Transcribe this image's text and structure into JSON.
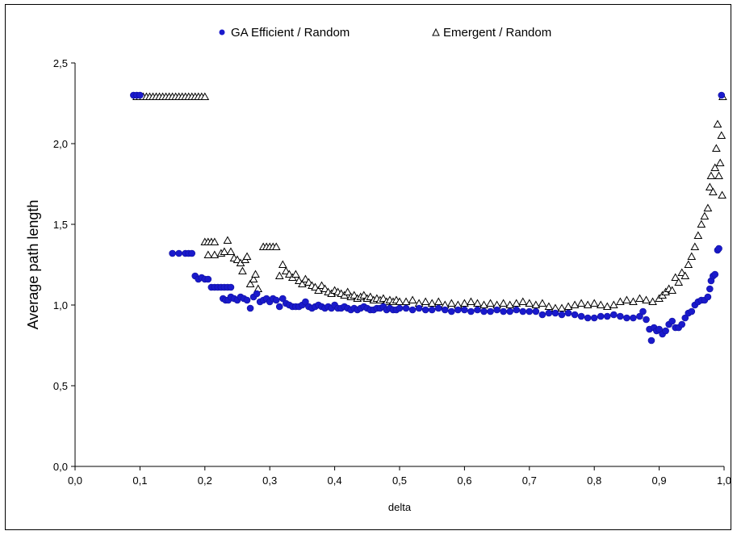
{
  "chart_data": {
    "type": "scatter",
    "title": "",
    "xlabel": "delta",
    "ylabel": "Average path length",
    "xlim": [
      0,
      1
    ],
    "ylim": [
      0,
      2.5
    ],
    "x_ticks": [
      "0,0",
      "0,1",
      "0,2",
      "0,3",
      "0,4",
      "0,5",
      "0,6",
      "0,7",
      "0,8",
      "0,9",
      "1,0"
    ],
    "y_ticks": [
      "0,0",
      "0,5",
      "1,0",
      "1,5",
      "2,0",
      "2,5"
    ],
    "grid": false,
    "legend_position": "top",
    "series": [
      {
        "name": "GA Efficient / Random",
        "marker": "circle",
        "color": "#1a1acc",
        "points": [
          [
            0.09,
            2.3
          ],
          [
            0.095,
            2.3
          ],
          [
            0.1,
            2.3
          ],
          [
            0.15,
            1.32
          ],
          [
            0.16,
            1.32
          ],
          [
            0.17,
            1.32
          ],
          [
            0.175,
            1.32
          ],
          [
            0.18,
            1.32
          ],
          [
            0.185,
            1.18
          ],
          [
            0.19,
            1.16
          ],
          [
            0.195,
            1.17
          ],
          [
            0.2,
            1.16
          ],
          [
            0.205,
            1.16
          ],
          [
            0.21,
            1.11
          ],
          [
            0.215,
            1.11
          ],
          [
            0.22,
            1.11
          ],
          [
            0.225,
            1.11
          ],
          [
            0.23,
            1.11
          ],
          [
            0.235,
            1.11
          ],
          [
            0.24,
            1.11
          ],
          [
            0.228,
            1.04
          ],
          [
            0.232,
            1.03
          ],
          [
            0.236,
            1.03
          ],
          [
            0.24,
            1.05
          ],
          [
            0.245,
            1.04
          ],
          [
            0.25,
            1.03
          ],
          [
            0.255,
            1.05
          ],
          [
            0.26,
            1.04
          ],
          [
            0.265,
            1.03
          ],
          [
            0.27,
            0.98
          ],
          [
            0.275,
            1.05
          ],
          [
            0.28,
            1.07
          ],
          [
            0.285,
            1.02
          ],
          [
            0.29,
            1.03
          ],
          [
            0.295,
            1.04
          ],
          [
            0.3,
            1.02
          ],
          [
            0.305,
            1.04
          ],
          [
            0.31,
            1.03
          ],
          [
            0.315,
            0.99
          ],
          [
            0.32,
            1.04
          ],
          [
            0.325,
            1.01
          ],
          [
            0.33,
            1.0
          ],
          [
            0.335,
            0.99
          ],
          [
            0.34,
            0.99
          ],
          [
            0.345,
            0.99
          ],
          [
            0.35,
            1.0
          ],
          [
            0.355,
            1.02
          ],
          [
            0.36,
            0.99
          ],
          [
            0.365,
            0.98
          ],
          [
            0.37,
            0.99
          ],
          [
            0.375,
            1.0
          ],
          [
            0.38,
            0.99
          ],
          [
            0.385,
            0.98
          ],
          [
            0.39,
            0.99
          ],
          [
            0.395,
            0.98
          ],
          [
            0.4,
            1.0
          ],
          [
            0.405,
            0.98
          ],
          [
            0.41,
            0.98
          ],
          [
            0.415,
            0.99
          ],
          [
            0.42,
            0.98
          ],
          [
            0.425,
            0.97
          ],
          [
            0.43,
            0.98
          ],
          [
            0.435,
            0.97
          ],
          [
            0.44,
            0.98
          ],
          [
            0.445,
            0.99
          ],
          [
            0.45,
            0.98
          ],
          [
            0.455,
            0.97
          ],
          [
            0.46,
            0.97
          ],
          [
            0.465,
            0.98
          ],
          [
            0.47,
            0.98
          ],
          [
            0.475,
            0.99
          ],
          [
            0.48,
            0.97
          ],
          [
            0.485,
            0.98
          ],
          [
            0.49,
            0.97
          ],
          [
            0.495,
            0.97
          ],
          [
            0.5,
            0.98
          ],
          [
            0.51,
            0.98
          ],
          [
            0.52,
            0.97
          ],
          [
            0.53,
            0.98
          ],
          [
            0.54,
            0.97
          ],
          [
            0.55,
            0.97
          ],
          [
            0.56,
            0.98
          ],
          [
            0.57,
            0.97
          ],
          [
            0.58,
            0.96
          ],
          [
            0.59,
            0.97
          ],
          [
            0.6,
            0.97
          ],
          [
            0.61,
            0.96
          ],
          [
            0.62,
            0.97
          ],
          [
            0.63,
            0.96
          ],
          [
            0.64,
            0.96
          ],
          [
            0.65,
            0.97
          ],
          [
            0.66,
            0.96
          ],
          [
            0.67,
            0.96
          ],
          [
            0.68,
            0.97
          ],
          [
            0.69,
            0.96
          ],
          [
            0.7,
            0.96
          ],
          [
            0.71,
            0.96
          ],
          [
            0.72,
            0.94
          ],
          [
            0.73,
            0.95
          ],
          [
            0.74,
            0.95
          ],
          [
            0.75,
            0.94
          ],
          [
            0.76,
            0.95
          ],
          [
            0.77,
            0.94
          ],
          [
            0.78,
            0.93
          ],
          [
            0.79,
            0.92
          ],
          [
            0.8,
            0.92
          ],
          [
            0.81,
            0.93
          ],
          [
            0.82,
            0.93
          ],
          [
            0.83,
            0.94
          ],
          [
            0.84,
            0.93
          ],
          [
            0.85,
            0.92
          ],
          [
            0.86,
            0.92
          ],
          [
            0.87,
            0.93
          ],
          [
            0.875,
            0.96
          ],
          [
            0.88,
            0.91
          ],
          [
            0.885,
            0.85
          ],
          [
            0.888,
            0.78
          ],
          [
            0.892,
            0.86
          ],
          [
            0.896,
            0.84
          ],
          [
            0.9,
            0.85
          ],
          [
            0.905,
            0.82
          ],
          [
            0.91,
            0.84
          ],
          [
            0.915,
            0.88
          ],
          [
            0.92,
            0.9
          ],
          [
            0.925,
            0.86
          ],
          [
            0.93,
            0.86
          ],
          [
            0.935,
            0.88
          ],
          [
            0.94,
            0.92
          ],
          [
            0.945,
            0.95
          ],
          [
            0.95,
            0.96
          ],
          [
            0.955,
            1.0
          ],
          [
            0.96,
            1.02
          ],
          [
            0.965,
            1.03
          ],
          [
            0.97,
            1.03
          ],
          [
            0.975,
            1.05
          ],
          [
            0.978,
            1.1
          ],
          [
            0.98,
            1.15
          ],
          [
            0.983,
            1.18
          ],
          [
            0.986,
            1.19
          ],
          [
            0.99,
            1.34
          ],
          [
            0.992,
            1.35
          ],
          [
            0.996,
            2.3
          ]
        ]
      },
      {
        "name": "Emergent / Random",
        "marker": "triangle",
        "color": "#000000",
        "points": [
          [
            0.095,
            2.29
          ],
          [
            0.1,
            2.29
          ],
          [
            0.105,
            2.29
          ],
          [
            0.11,
            2.29
          ],
          [
            0.115,
            2.29
          ],
          [
            0.12,
            2.29
          ],
          [
            0.125,
            2.29
          ],
          [
            0.13,
            2.29
          ],
          [
            0.135,
            2.29
          ],
          [
            0.14,
            2.29
          ],
          [
            0.145,
            2.29
          ],
          [
            0.15,
            2.29
          ],
          [
            0.155,
            2.29
          ],
          [
            0.16,
            2.29
          ],
          [
            0.165,
            2.29
          ],
          [
            0.17,
            2.29
          ],
          [
            0.175,
            2.29
          ],
          [
            0.18,
            2.29
          ],
          [
            0.185,
            2.29
          ],
          [
            0.19,
            2.29
          ],
          [
            0.195,
            2.29
          ],
          [
            0.2,
            2.29
          ],
          [
            0.2,
            1.39
          ],
          [
            0.205,
            1.39
          ],
          [
            0.21,
            1.39
          ],
          [
            0.215,
            1.39
          ],
          [
            0.205,
            1.31
          ],
          [
            0.215,
            1.31
          ],
          [
            0.225,
            1.32
          ],
          [
            0.23,
            1.33
          ],
          [
            0.235,
            1.4
          ],
          [
            0.24,
            1.33
          ],
          [
            0.245,
            1.29
          ],
          [
            0.25,
            1.28
          ],
          [
            0.255,
            1.26
          ],
          [
            0.258,
            1.21
          ],
          [
            0.262,
            1.28
          ],
          [
            0.265,
            1.3
          ],
          [
            0.27,
            1.13
          ],
          [
            0.275,
            1.16
          ],
          [
            0.278,
            1.19
          ],
          [
            0.282,
            1.1
          ],
          [
            0.29,
            1.36
          ],
          [
            0.295,
            1.36
          ],
          [
            0.3,
            1.36
          ],
          [
            0.305,
            1.36
          ],
          [
            0.31,
            1.36
          ],
          [
            0.315,
            1.18
          ],
          [
            0.32,
            1.25
          ],
          [
            0.325,
            1.21
          ],
          [
            0.33,
            1.19
          ],
          [
            0.335,
            1.17
          ],
          [
            0.34,
            1.19
          ],
          [
            0.345,
            1.15
          ],
          [
            0.35,
            1.13
          ],
          [
            0.355,
            1.16
          ],
          [
            0.36,
            1.14
          ],
          [
            0.365,
            1.12
          ],
          [
            0.37,
            1.11
          ],
          [
            0.375,
            1.09
          ],
          [
            0.38,
            1.12
          ],
          [
            0.385,
            1.1
          ],
          [
            0.39,
            1.08
          ],
          [
            0.395,
            1.07
          ],
          [
            0.4,
            1.09
          ],
          [
            0.405,
            1.08
          ],
          [
            0.41,
            1.07
          ],
          [
            0.415,
            1.06
          ],
          [
            0.42,
            1.08
          ],
          [
            0.425,
            1.05
          ],
          [
            0.43,
            1.06
          ],
          [
            0.435,
            1.04
          ],
          [
            0.44,
            1.05
          ],
          [
            0.445,
            1.06
          ],
          [
            0.45,
            1.04
          ],
          [
            0.455,
            1.05
          ],
          [
            0.46,
            1.03
          ],
          [
            0.465,
            1.04
          ],
          [
            0.47,
            1.03
          ],
          [
            0.475,
            1.04
          ],
          [
            0.48,
            1.02
          ],
          [
            0.485,
            1.03
          ],
          [
            0.49,
            1.02
          ],
          [
            0.495,
            1.03
          ],
          [
            0.5,
            1.02
          ],
          [
            0.51,
            1.02
          ],
          [
            0.52,
            1.03
          ],
          [
            0.53,
            1.01
          ],
          [
            0.54,
            1.02
          ],
          [
            0.55,
            1.01
          ],
          [
            0.56,
            1.02
          ],
          [
            0.57,
            1.0
          ],
          [
            0.58,
            1.01
          ],
          [
            0.59,
            1.0
          ],
          [
            0.6,
            1.01
          ],
          [
            0.61,
            1.02
          ],
          [
            0.62,
            1.01
          ],
          [
            0.63,
            1.0
          ],
          [
            0.64,
            1.01
          ],
          [
            0.65,
            1.0
          ],
          [
            0.66,
            1.01
          ],
          [
            0.67,
            1.0
          ],
          [
            0.68,
            1.01
          ],
          [
            0.69,
            1.02
          ],
          [
            0.7,
            1.01
          ],
          [
            0.71,
            1.0
          ],
          [
            0.72,
            1.01
          ],
          [
            0.73,
            0.99
          ],
          [
            0.74,
            0.98
          ],
          [
            0.75,
            0.98
          ],
          [
            0.76,
            0.99
          ],
          [
            0.77,
            1.0
          ],
          [
            0.78,
            1.01
          ],
          [
            0.79,
            1.0
          ],
          [
            0.8,
            1.01
          ],
          [
            0.81,
            1.0
          ],
          [
            0.82,
            0.99
          ],
          [
            0.83,
            1.0
          ],
          [
            0.84,
            1.02
          ],
          [
            0.85,
            1.03
          ],
          [
            0.86,
            1.02
          ],
          [
            0.87,
            1.04
          ],
          [
            0.88,
            1.03
          ],
          [
            0.89,
            1.02
          ],
          [
            0.9,
            1.04
          ],
          [
            0.905,
            1.06
          ],
          [
            0.91,
            1.08
          ],
          [
            0.915,
            1.1
          ],
          [
            0.92,
            1.09
          ],
          [
            0.925,
            1.17
          ],
          [
            0.93,
            1.14
          ],
          [
            0.935,
            1.2
          ],
          [
            0.94,
            1.18
          ],
          [
            0.945,
            1.25
          ],
          [
            0.95,
            1.3
          ],
          [
            0.955,
            1.36
          ],
          [
            0.96,
            1.43
          ],
          [
            0.965,
            1.5
          ],
          [
            0.97,
            1.55
          ],
          [
            0.975,
            1.6
          ],
          [
            0.978,
            1.73
          ],
          [
            0.98,
            1.8
          ],
          [
            0.983,
            1.7
          ],
          [
            0.986,
            1.85
          ],
          [
            0.988,
            1.97
          ],
          [
            0.99,
            2.12
          ],
          [
            0.992,
            1.8
          ],
          [
            0.994,
            1.88
          ],
          [
            0.996,
            2.05
          ],
          [
            0.997,
            1.68
          ],
          [
            0.998,
            2.29
          ]
        ]
      }
    ]
  }
}
